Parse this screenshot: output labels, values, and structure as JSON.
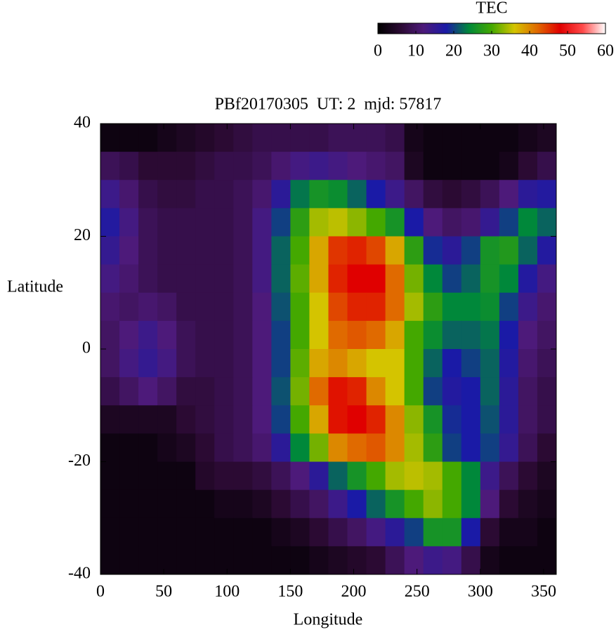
{
  "chart_data": {
    "type": "heatmap",
    "title": "PBf20170305  UT: 2  mjd: 57817",
    "x_label": "Longitude",
    "y_label": "Latitude",
    "colorbar_label": "TEC",
    "xlim": [
      0,
      360
    ],
    "xticks": [
      0,
      50,
      100,
      150,
      200,
      250,
      300,
      350
    ],
    "ylim": [
      -40,
      40
    ],
    "yticks": [
      -40,
      -20,
      0,
      20,
      40
    ],
    "clim": [
      0,
      60
    ],
    "cticks": [
      0,
      10,
      20,
      30,
      40,
      50,
      60
    ],
    "colormap": [
      "#000000",
      "#2b0a33",
      "#4d1a7a",
      "#1a1aa6",
      "#00883a",
      "#44a800",
      "#d4c400",
      "#e06a00",
      "#e00000",
      "#ff4a4a",
      "#ffffff"
    ],
    "x": [
      7.5,
      22.5,
      37.5,
      52.5,
      67.5,
      82.5,
      97.5,
      112.5,
      127.5,
      142.5,
      157.5,
      172.5,
      187.5,
      202.5,
      217.5,
      232.5,
      247.5,
      262.5,
      277.5,
      292.5,
      307.5,
      322.5,
      337.5,
      352.5
    ],
    "y": [
      37.5,
      32.5,
      27.5,
      22.5,
      17.5,
      12.5,
      7.5,
      2.5,
      -2.5,
      -7.5,
      -12.5,
      -17.5,
      -22.5,
      -27.5,
      -32.5,
      -37.5
    ],
    "z": [
      [
        2,
        2,
        2,
        3,
        4,
        5,
        6,
        7,
        8,
        8,
        8,
        8,
        9,
        9,
        9,
        8,
        3,
        2,
        2,
        2,
        2,
        2,
        3,
        4
      ],
      [
        9,
        8,
        6,
        6,
        6,
        7,
        8,
        8,
        9,
        11,
        13,
        14,
        13,
        12,
        11,
        10,
        4,
        2,
        2,
        2,
        2,
        3,
        6,
        8
      ],
      [
        14,
        11,
        8,
        7,
        7,
        8,
        8,
        9,
        11,
        16,
        23,
        26,
        25,
        22,
        18,
        14,
        10,
        7,
        6,
        7,
        9,
        12,
        16,
        17
      ],
      [
        17,
        13,
        9,
        8,
        8,
        8,
        8,
        9,
        13,
        20,
        28,
        34,
        35,
        33,
        30,
        26,
        18,
        12,
        10,
        11,
        15,
        20,
        24,
        22
      ],
      [
        15,
        12,
        9,
        8,
        8,
        8,
        8,
        9,
        13,
        22,
        30,
        38,
        45,
        46,
        44,
        38,
        28,
        19,
        16,
        20,
        26,
        27,
        22,
        17
      ],
      [
        13,
        11,
        9,
        8,
        8,
        8,
        8,
        9,
        13,
        22,
        31,
        38,
        46,
        48,
        48,
        42,
        32,
        24,
        20,
        22,
        26,
        24,
        17,
        13
      ],
      [
        11,
        10,
        11,
        10,
        8,
        8,
        8,
        9,
        12,
        21,
        30,
        36,
        44,
        46,
        46,
        42,
        34,
        28,
        24,
        24,
        25,
        20,
        14,
        11
      ],
      [
        10,
        12,
        14,
        12,
        9,
        8,
        8,
        9,
        12,
        20,
        30,
        36,
        42,
        43,
        42,
        38,
        30,
        25,
        22,
        22,
        23,
        18,
        12,
        10
      ],
      [
        10,
        13,
        15,
        13,
        9,
        8,
        8,
        9,
        12,
        20,
        31,
        38,
        40,
        38,
        36,
        36,
        30,
        22,
        18,
        20,
        22,
        17,
        11,
        9
      ],
      [
        8,
        10,
        12,
        10,
        7,
        7,
        8,
        9,
        12,
        21,
        32,
        42,
        47,
        46,
        40,
        36,
        30,
        20,
        17,
        18,
        22,
        16,
        10,
        8
      ],
      [
        4,
        4,
        4,
        4,
        6,
        7,
        8,
        9,
        12,
        20,
        30,
        38,
        47,
        48,
        46,
        40,
        33,
        26,
        19,
        18,
        21,
        16,
        10,
        8
      ],
      [
        2,
        2,
        2,
        3,
        4,
        6,
        8,
        9,
        11,
        16,
        24,
        32,
        40,
        42,
        43,
        40,
        34,
        28,
        20,
        18,
        20,
        15,
        9,
        6
      ],
      [
        2,
        2,
        2,
        2,
        2,
        5,
        6,
        6,
        7,
        9,
        12,
        16,
        22,
        26,
        30,
        34,
        35,
        34,
        30,
        24,
        14,
        9,
        6,
        4
      ],
      [
        2,
        2,
        2,
        2,
        2,
        2,
        3,
        3,
        4,
        6,
        8,
        10,
        14,
        18,
        22,
        26,
        30,
        33,
        30,
        24,
        12,
        6,
        4,
        3
      ],
      [
        2,
        2,
        2,
        2,
        2,
        2,
        2,
        2,
        2,
        3,
        4,
        6,
        8,
        10,
        13,
        16,
        20,
        26,
        26,
        18,
        6,
        3,
        3,
        2
      ],
      [
        2,
        2,
        2,
        2,
        2,
        2,
        2,
        2,
        2,
        2,
        2,
        3,
        4,
        5,
        6,
        9,
        12,
        14,
        13,
        8,
        3,
        2,
        2,
        2
      ]
    ]
  }
}
